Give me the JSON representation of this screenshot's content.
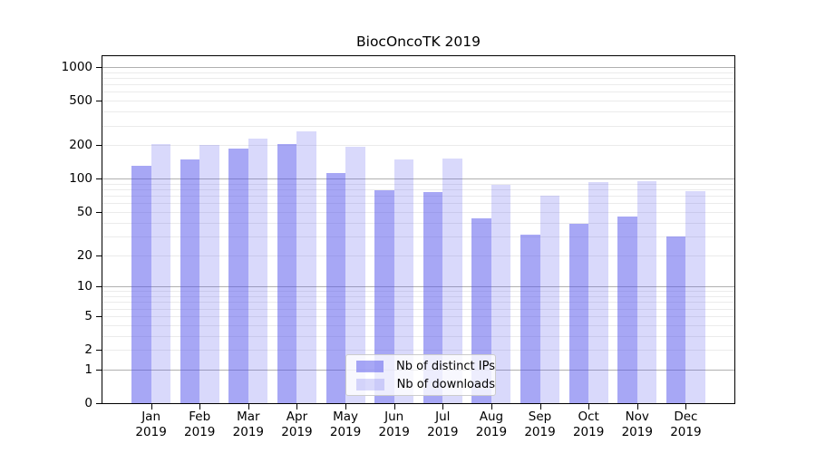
{
  "chart_data": {
    "type": "bar",
    "title": "BiocOncoTK 2019",
    "categories": [
      "Jan 2019",
      "Feb 2019",
      "Mar 2019",
      "Apr 2019",
      "May 2019",
      "Jun 2019",
      "Jul 2019",
      "Aug 2019",
      "Sep 2019",
      "Oct 2019",
      "Nov 2019",
      "Dec 2019"
    ],
    "x_tick_labels": [
      {
        "month": "Jan",
        "year": "2019"
      },
      {
        "month": "Feb",
        "year": "2019"
      },
      {
        "month": "Mar",
        "year": "2019"
      },
      {
        "month": "Apr",
        "year": "2019"
      },
      {
        "month": "May",
        "year": "2019"
      },
      {
        "month": "Jun",
        "year": "2019"
      },
      {
        "month": "Jul",
        "year": "2019"
      },
      {
        "month": "Aug",
        "year": "2019"
      },
      {
        "month": "Sep",
        "year": "2019"
      },
      {
        "month": "Oct",
        "year": "2019"
      },
      {
        "month": "Nov",
        "year": "2019"
      },
      {
        "month": "Dec",
        "year": "2019"
      }
    ],
    "series": [
      {
        "name": "Nb of distinct IPs",
        "color": "rgba(80,80,235,0.5)",
        "color_hex": "#a8a8f6",
        "values": [
          130,
          148,
          185,
          205,
          112,
          78,
          75,
          44,
          31,
          39,
          45,
          30
        ]
      },
      {
        "name": "Nb of downloads",
        "color": "rgba(80,80,235,0.22)",
        "color_hex": "#dbdbf9",
        "values": [
          204,
          202,
          228,
          266,
          193,
          148,
          152,
          88,
          70,
          93,
          95,
          77
        ]
      }
    ],
    "y_axis": {
      "scale": "log10(value+1)",
      "ylim": [
        0,
        1270
      ],
      "ticks": [
        {
          "label": "1000",
          "value": 1000
        },
        {
          "label": "500",
          "value": 500
        },
        {
          "label": "200",
          "value": 200
        },
        {
          "label": "100",
          "value": 100
        },
        {
          "label": "50",
          "value": 50
        },
        {
          "label": "20",
          "value": 20
        },
        {
          "label": "10",
          "value": 10
        },
        {
          "label": "5",
          "value": 5
        },
        {
          "label": "2",
          "value": 2
        },
        {
          "label": "1",
          "value": 1
        },
        {
          "label": "0",
          "value": 0
        }
      ],
      "major_gridlines": [
        1,
        10,
        100,
        1000
      ],
      "minor_gridlines": [
        2,
        3,
        4,
        5,
        6,
        7,
        8,
        9,
        20,
        30,
        40,
        50,
        60,
        70,
        80,
        90,
        200,
        300,
        400,
        500,
        600,
        700,
        800,
        900
      ]
    },
    "legend": {
      "position": "lower center",
      "entries": [
        "Nb of distinct IPs",
        "Nb of downloads"
      ]
    },
    "grid": "horizontal",
    "colors": {
      "bar_base": "#5050eb",
      "major_grid": "#b0b0b0",
      "minor_grid": "#ebebeb",
      "spine": "#000000",
      "background": "#ffffff"
    }
  }
}
